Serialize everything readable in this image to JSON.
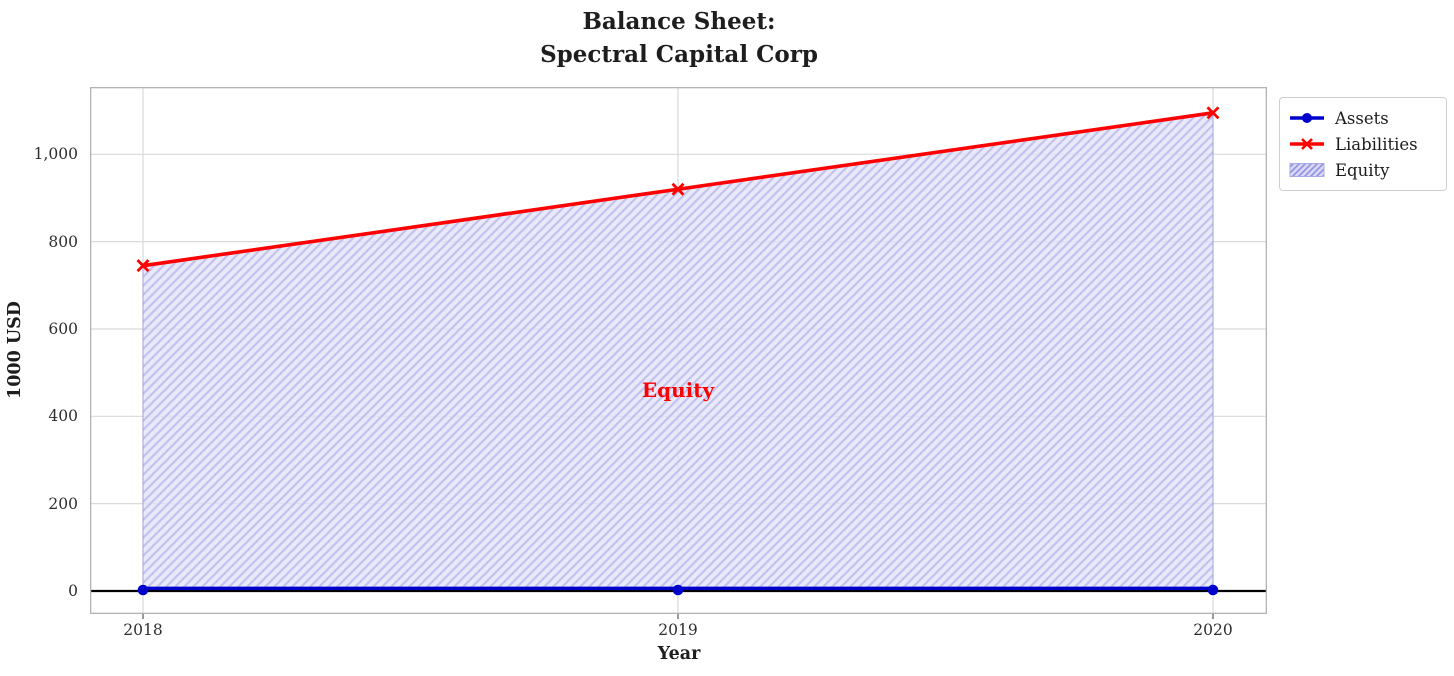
{
  "figure": {
    "title_line1": "Balance Sheet:",
    "title_line2": "Spectral Capital Corp",
    "xlabel": "Year",
    "ylabel": "1000 USD",
    "annotation": "Equity"
  },
  "legend": {
    "items": [
      {
        "label": "Assets",
        "swatch": "line-circle",
        "color": "#0000cd"
      },
      {
        "label": "Liabilities",
        "swatch": "line-x",
        "color": "#fe0000"
      },
      {
        "label": "Equity",
        "swatch": "hatch-patch",
        "color": "#9191e2"
      }
    ]
  },
  "chart_data": {
    "type": "line",
    "title": "Balance Sheet:\nSpectral Capital Corp",
    "xlabel": "Year",
    "ylabel": "1000 USD",
    "x": [
      2018,
      2019,
      2020
    ],
    "x_tick_labels": [
      "2018",
      "2019",
      "2020"
    ],
    "series": [
      {
        "name": "Assets",
        "values": [
          0,
          0,
          0
        ],
        "color": "#0000cd",
        "marker": "circle",
        "linewidth": 3
      },
      {
        "name": "Liabilities",
        "values": [
          745,
          920,
          1095
        ],
        "color": "#fe0000",
        "marker": "x",
        "linewidth": 3
      }
    ],
    "area": {
      "name": "Equity",
      "between": [
        "Assets",
        "Liabilities"
      ],
      "hatch": "/",
      "facecolor": "#e3e3f9",
      "hatchcolor": "#c2c2ee",
      "edgecolor": "#9898e0",
      "annotation": {
        "text": "Equity",
        "x": 2019,
        "y": 460,
        "color": "#fe0000"
      }
    },
    "y_ticks": {
      "values": [
        0,
        200,
        400,
        600,
        800,
        1000
      ],
      "labels": [
        "0",
        "200",
        "400",
        "600",
        "800",
        "1,000"
      ]
    },
    "xlim": [
      2017.9,
      2020.1
    ],
    "ylim": [
      -54,
      1153
    ],
    "grid": true,
    "gridcolor": "#d9d9d9",
    "spinecolor": "#b3b3b3",
    "zero_line": {
      "y": 0,
      "color": "#000000"
    },
    "legend_position": "upper-right-outside"
  }
}
